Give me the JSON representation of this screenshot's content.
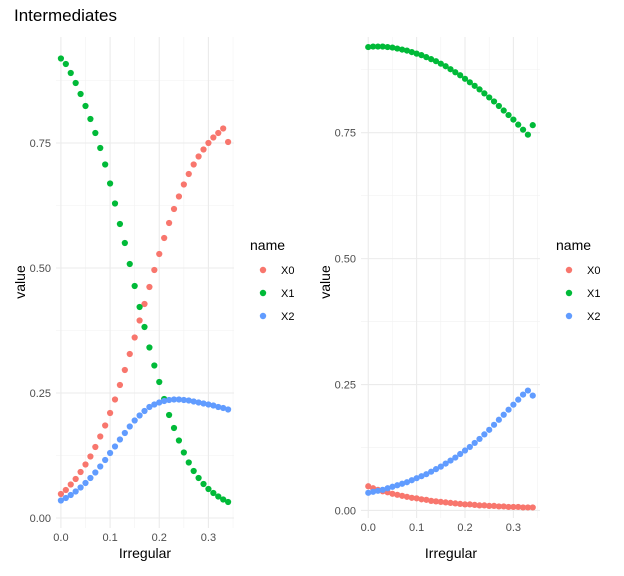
{
  "title": "Intermediates",
  "colors": {
    "X0": "#F8766D",
    "X1": "#00BA38",
    "X2": "#619CFF"
  },
  "chart_data": [
    {
      "type": "scatter",
      "xlabel": "Irregular",
      "ylabel": "value",
      "xlim": [
        -0.01,
        0.352
      ],
      "ylim": [
        -0.02,
        0.962
      ],
      "x_ticks": [
        {
          "value": 0,
          "label": "0.0"
        },
        {
          "value": 0.1,
          "label": "0.1"
        },
        {
          "value": 0.2,
          "label": "0.2"
        },
        {
          "value": 0.3,
          "label": "0.3"
        }
      ],
      "y_ticks": [
        {
          "value": 0,
          "label": "0.00"
        },
        {
          "value": 0.25,
          "label": "0.25"
        },
        {
          "value": 0.5,
          "label": "0.50"
        },
        {
          "value": 0.75,
          "label": "0.75"
        }
      ],
      "x": [
        0,
        0.01,
        0.02,
        0.03,
        0.04,
        0.05,
        0.06,
        0.07,
        0.08,
        0.09,
        0.1,
        0.11,
        0.12,
        0.13,
        0.14,
        0.15,
        0.16,
        0.17,
        0.18,
        0.19,
        0.2,
        0.21,
        0.22,
        0.23,
        0.24,
        0.25,
        0.26,
        0.27,
        0.28,
        0.29,
        0.3,
        0.31,
        0.32,
        0.33,
        0.34
      ],
      "series": [
        {
          "name": "X0",
          "values": [
            0.048,
            0.056,
            0.067,
            0.078,
            0.092,
            0.107,
            0.123,
            0.142,
            0.163,
            0.185,
            0.21,
            0.237,
            0.266,
            0.296,
            0.328,
            0.361,
            0.395,
            0.428,
            0.462,
            0.496,
            0.528,
            0.56,
            0.59,
            0.618,
            0.643,
            0.667,
            0.688,
            0.707,
            0.723,
            0.737,
            0.75,
            0.761,
            0.77,
            0.779,
            0.752
          ]
        },
        {
          "name": "X1",
          "values": [
            0.919,
            0.908,
            0.89,
            0.87,
            0.848,
            0.824,
            0.798,
            0.77,
            0.74,
            0.707,
            0.669,
            0.629,
            0.588,
            0.55,
            0.508,
            0.464,
            0.422,
            0.382,
            0.341,
            0.305,
            0.272,
            0.238,
            0.206,
            0.18,
            0.155,
            0.131,
            0.111,
            0.094,
            0.08,
            0.068,
            0.058,
            0.05,
            0.043,
            0.037,
            0.032
          ]
        },
        {
          "name": "X2",
          "values": [
            0.035,
            0.04,
            0.046,
            0.053,
            0.061,
            0.07,
            0.08,
            0.091,
            0.103,
            0.116,
            0.13,
            0.143,
            0.157,
            0.17,
            0.183,
            0.195,
            0.205,
            0.214,
            0.222,
            0.227,
            0.231,
            0.234,
            0.236,
            0.237,
            0.237,
            0.236,
            0.235,
            0.233,
            0.231,
            0.229,
            0.227,
            0.225,
            0.222,
            0.22,
            0.217
          ]
        }
      ]
    },
    {
      "type": "scatter",
      "xlabel": "Irregular",
      "ylabel": "value",
      "xlim": [
        -0.015,
        0.355
      ],
      "ylim": [
        -0.015,
        0.94
      ],
      "x_ticks": [
        {
          "value": 0,
          "label": "0.0"
        },
        {
          "value": 0.1,
          "label": "0.1"
        },
        {
          "value": 0.2,
          "label": "0.2"
        },
        {
          "value": 0.3,
          "label": "0.3"
        }
      ],
      "y_ticks": [
        {
          "value": 0,
          "label": "0.00"
        },
        {
          "value": 0.25,
          "label": "0.25"
        },
        {
          "value": 0.5,
          "label": "0.50"
        },
        {
          "value": 0.75,
          "label": "0.75"
        }
      ],
      "x": [
        0,
        0.01,
        0.02,
        0.03,
        0.04,
        0.05,
        0.06,
        0.07,
        0.08,
        0.09,
        0.1,
        0.11,
        0.12,
        0.13,
        0.14,
        0.15,
        0.16,
        0.17,
        0.18,
        0.19,
        0.2,
        0.21,
        0.22,
        0.23,
        0.24,
        0.25,
        0.26,
        0.27,
        0.28,
        0.29,
        0.3,
        0.31,
        0.32,
        0.33,
        0.34
      ],
      "series": [
        {
          "name": "X0",
          "values": [
            0.048,
            0.044,
            0.041,
            0.038,
            0.036,
            0.033,
            0.031,
            0.029,
            0.027,
            0.025,
            0.024,
            0.022,
            0.021,
            0.019,
            0.018,
            0.017,
            0.016,
            0.015,
            0.014,
            0.013,
            0.012,
            0.012,
            0.011,
            0.01,
            0.01,
            0.009,
            0.009,
            0.008,
            0.008,
            0.007,
            0.007,
            0.007,
            0.006,
            0.006,
            0.006
          ]
        },
        {
          "name": "X1",
          "values": [
            0.92,
            0.921,
            0.921,
            0.921,
            0.92,
            0.919,
            0.917,
            0.915,
            0.913,
            0.91,
            0.907,
            0.904,
            0.9,
            0.896,
            0.892,
            0.887,
            0.882,
            0.876,
            0.87,
            0.864,
            0.857,
            0.85,
            0.843,
            0.836,
            0.828,
            0.82,
            0.812,
            0.803,
            0.794,
            0.785,
            0.776,
            0.766,
            0.756,
            0.746,
            0.765
          ]
        },
        {
          "name": "X2",
          "values": [
            0.035,
            0.037,
            0.039,
            0.041,
            0.044,
            0.047,
            0.05,
            0.053,
            0.056,
            0.06,
            0.064,
            0.068,
            0.072,
            0.077,
            0.082,
            0.087,
            0.093,
            0.099,
            0.105,
            0.112,
            0.119,
            0.126,
            0.134,
            0.142,
            0.151,
            0.16,
            0.17,
            0.18,
            0.19,
            0.2,
            0.21,
            0.22,
            0.23,
            0.238,
            0.228
          ]
        }
      ]
    }
  ],
  "legends": [
    {
      "title": "name",
      "items": [
        "X0",
        "X1",
        "X2"
      ]
    },
    {
      "title": "name",
      "items": [
        "X0",
        "X1",
        "X2"
      ]
    }
  ]
}
